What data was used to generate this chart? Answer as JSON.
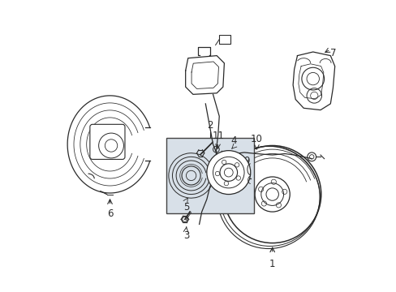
{
  "background_color": "#ffffff",
  "line_color": "#2a2a2a",
  "box_fill": "#d8e0e8",
  "figsize": [
    4.89,
    3.6
  ],
  "dpi": 100
}
